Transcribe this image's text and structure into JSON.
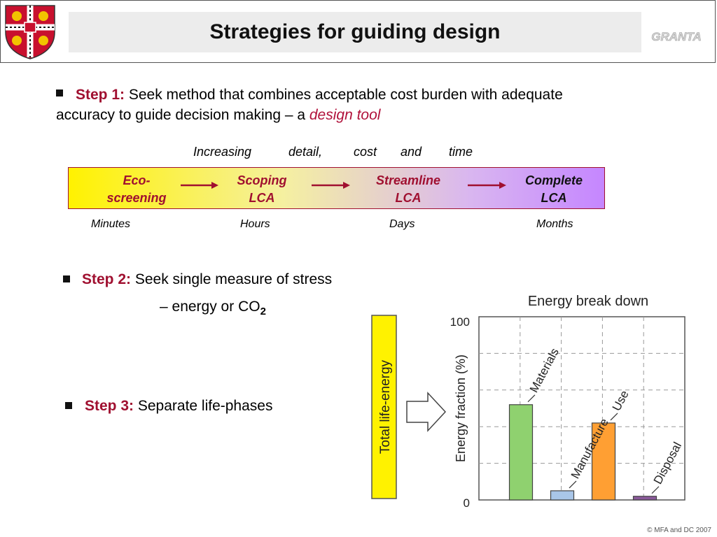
{
  "header": {
    "title": "Strategies for guiding design",
    "logo_text": "GRANTA"
  },
  "step1": {
    "label": "Step 1:",
    "text": " Seek method that combines acceptable cost burden with adequate accuracy to guide decision making – a ",
    "emphasis": "design tool"
  },
  "timeline": {
    "increasing_words": [
      "Increasing",
      "detail,",
      "cost",
      "and",
      "time"
    ],
    "stages": [
      {
        "line1": "Eco-",
        "line2": "screening"
      },
      {
        "line1": "Scoping",
        "line2": "LCA"
      },
      {
        "line1": "Streamline",
        "line2": "LCA"
      },
      {
        "line1": "Complete",
        "line2": "LCA"
      }
    ],
    "durations": [
      "Minutes",
      "Hours",
      "Days",
      "Months"
    ],
    "colors": {
      "arrow": "#a01030",
      "bar_left": "#fff200",
      "bar_right": "#c586ff"
    }
  },
  "step2": {
    "label": "Step 2:",
    "text": " Seek single measure of stress",
    "sub": "– energy or CO",
    "sub_subscript": "2"
  },
  "step3": {
    "label": "Step 3:",
    "text": " Separate life-phases"
  },
  "chart_data": {
    "type": "bar",
    "title": "Energy break down",
    "ylabel": "Energy fraction (%)",
    "ylim": [
      0,
      100
    ],
    "yticks": [
      "0",
      "100"
    ],
    "side_label": "Total life-energy",
    "categories": [
      "Materials",
      "Manufacture",
      "Use",
      "Disposal"
    ],
    "values": [
      52,
      5,
      42,
      2
    ],
    "colors": [
      "#8fd16f",
      "#a9c6e8",
      "#ff9f33",
      "#8a5a9a"
    ],
    "grid": true
  },
  "footer": {
    "copyright": "© MFA  and DC 2007"
  }
}
